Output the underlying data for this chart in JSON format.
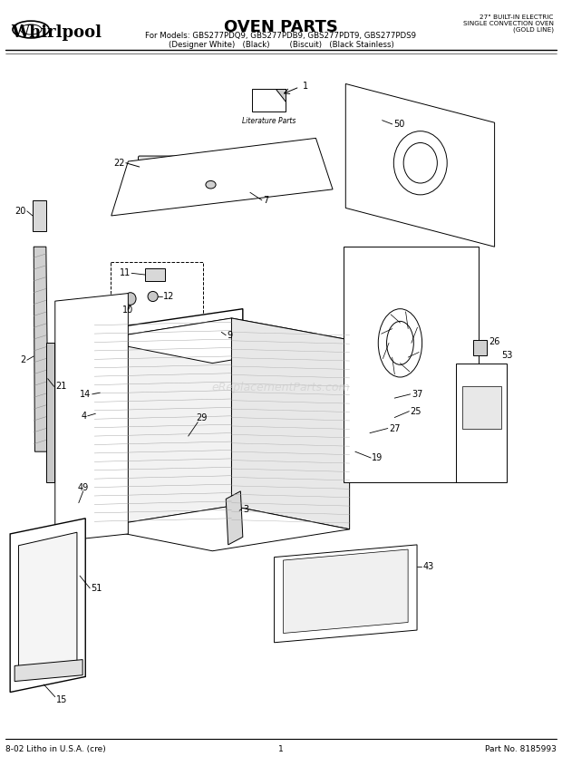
{
  "title": "OVEN PARTS",
  "subtitle_models": "For Models: GBS277PDQ9, GBS277PDB9, GBS277PDT9, GBS277PDS9",
  "subtitle_colors": "(Designer White)   (Black)        (Biscuit)   (Black Stainless)",
  "brand": "Whirlpool",
  "top_right_line1": "27\" BUILT-IN ELECTRIC",
  "top_right_line2": "SINGLE CONVECTION OVEN",
  "top_right_line3": "(GOLD LINE)",
  "bottom_left": "8-02 Litho in U.S.A. (cre)",
  "bottom_center": "1",
  "bottom_right": "Part No. 8185993",
  "watermark": "eReplacementParts.com",
  "bg_color": "#ffffff",
  "line_color": "#000000"
}
